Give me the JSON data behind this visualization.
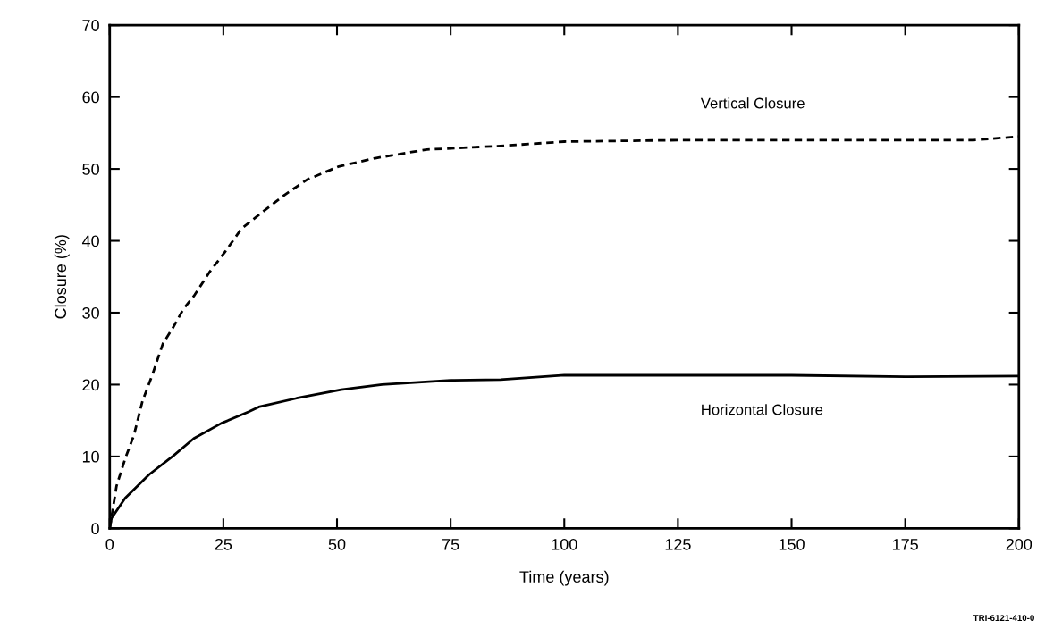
{
  "chart_data": {
    "type": "line",
    "xlabel": "Time (years)",
    "ylabel": "Closure (%)",
    "xlim": [
      0,
      200
    ],
    "ylim": [
      0,
      70
    ],
    "xticks": [
      0,
      25,
      50,
      75,
      100,
      125,
      150,
      175,
      200
    ],
    "yticks": [
      0,
      10,
      20,
      30,
      40,
      50,
      60,
      70
    ],
    "grid": false,
    "legend": false,
    "marker": "none",
    "series": [
      {
        "name": "Vertical Closure",
        "color": "#000000",
        "line_style": "dashed",
        "x": [
          0,
          1.5,
          3.4,
          5.3,
          7.2,
          9.4,
          11.7,
          14,
          16.2,
          18.5,
          21.9,
          25.3,
          29,
          33.6,
          38.5,
          43.4,
          50.2,
          58.4,
          69.8,
          86,
          100,
          125,
          150,
          175,
          190,
          200
        ],
        "values": [
          0,
          5.9,
          9.7,
          12.9,
          17.7,
          21.4,
          25.7,
          28,
          30.5,
          32.3,
          35.6,
          38.4,
          41.7,
          44,
          46.4,
          48.5,
          50.3,
          51.5,
          52.7,
          53.2,
          53.8,
          54,
          54,
          54,
          54,
          54.5
        ]
      },
      {
        "name": "Horizontal Closure",
        "color": "#000000",
        "line_style": "solid",
        "x": [
          0,
          0.4,
          3.4,
          8.7,
          14,
          18.5,
          24.5,
          30.5,
          32.8,
          41.1,
          50.9,
          59.9,
          75,
          86,
          100,
          125,
          150,
          175,
          200
        ],
        "values": [
          0,
          1.4,
          4.2,
          7.5,
          10.1,
          12.5,
          14.6,
          16.2,
          16.9,
          18.1,
          19.3,
          20,
          20.6,
          20.7,
          21.3,
          21.3,
          21.3,
          21.1,
          21.2
        ]
      }
    ],
    "annotations": [
      "TRI-6121-410-0"
    ]
  }
}
